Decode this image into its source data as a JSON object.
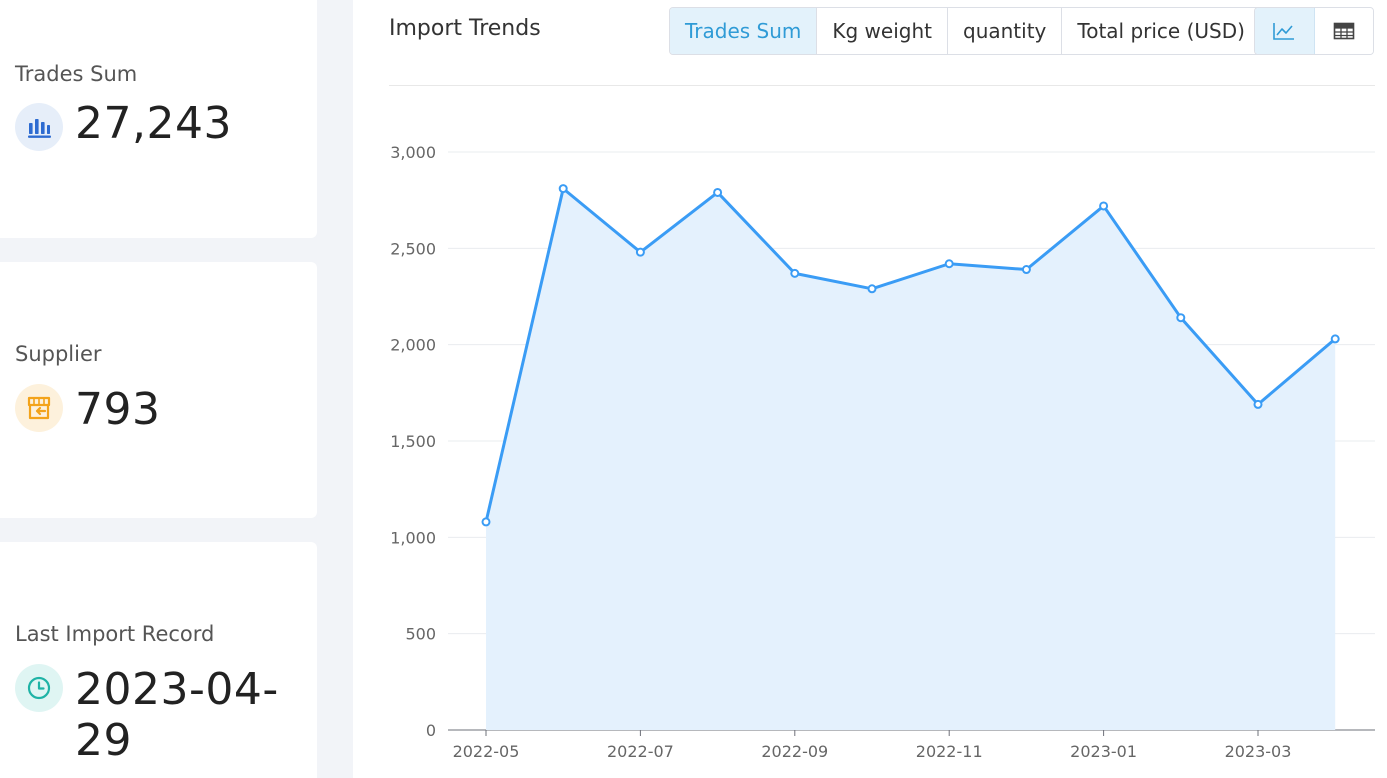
{
  "stats": {
    "trades_sum": {
      "label": "Trades Sum",
      "value": "27,243",
      "icon": "bar-chart-icon"
    },
    "supplier": {
      "label": "Supplier",
      "value": "793",
      "icon": "store-icon"
    },
    "last_import": {
      "label": "Last Import Record",
      "value": "2023-04-29",
      "icon": "clock-icon"
    }
  },
  "panel": {
    "title": "Import Trends",
    "metric_tabs": [
      {
        "label": "Trades Sum",
        "active": true
      },
      {
        "label": "Kg weight",
        "active": false
      },
      {
        "label": "quantity",
        "active": false
      },
      {
        "label": "Total price (USD)",
        "active": false
      }
    ],
    "view_toggle": [
      {
        "icon": "line-chart-icon",
        "active": true
      },
      {
        "icon": "table-icon",
        "active": false
      }
    ]
  },
  "colors": {
    "accent": "#2f9bd6",
    "line": "#3a9cf5",
    "area": "#e4f1fd",
    "trades_icon": "#2d6bd1",
    "supplier_icon": "#f3a31a",
    "last_icon": "#1fb3a6"
  },
  "chart_data": {
    "type": "area",
    "x": [
      "2022-05",
      "2022-06",
      "2022-07",
      "2022-08",
      "2022-09",
      "2022-10",
      "2022-11",
      "2022-12",
      "2023-01",
      "2023-02",
      "2023-03",
      "2023-04"
    ],
    "x_tick_labels": [
      "2022-05",
      "2022-07",
      "2022-09",
      "2022-11",
      "2023-01",
      "2023-03"
    ],
    "series": [
      {
        "values": [
          1080,
          2810,
          2480,
          2790,
          2370,
          2290,
          2420,
          2390,
          2720,
          2140,
          1690,
          2030
        ]
      }
    ],
    "ylim": [
      0,
      3000
    ],
    "y_ticks": [
      0,
      500,
      1000,
      1500,
      2000,
      2500,
      3000
    ],
    "y_tick_labels": [
      "0",
      "500",
      "1,000",
      "1,500",
      "2,000",
      "2,500",
      "3,000"
    ],
    "grid": true
  }
}
